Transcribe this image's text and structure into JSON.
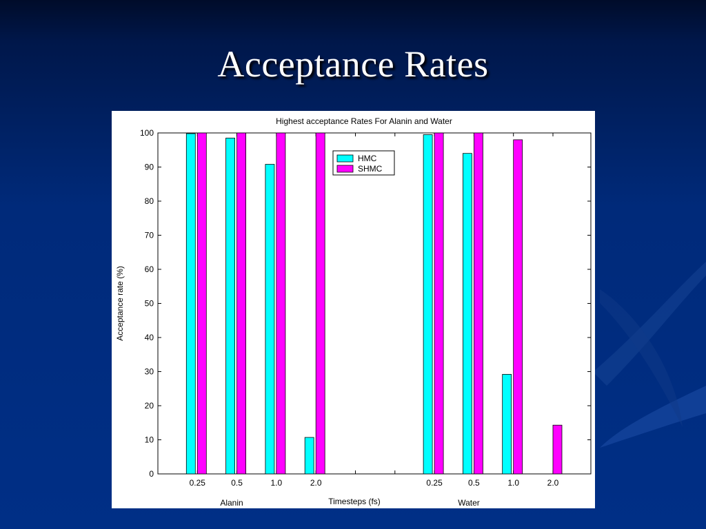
{
  "slide": {
    "title": "Acceptance Rates"
  },
  "colors": {
    "hmc": "#00ffff",
    "shmc": "#ff00ff",
    "background": "#002a7a"
  },
  "chart_data": {
    "type": "bar",
    "title": "Highest acceptance Rates For Alanin and Water",
    "xlabel": "Timesteps (fs)",
    "ylabel": "Acceptance rate (%)",
    "ylim": [
      0,
      100
    ],
    "yticks": [
      0,
      10,
      20,
      30,
      40,
      50,
      60,
      70,
      80,
      90,
      100
    ],
    "categories": [
      "0.25",
      "0.5",
      "1.0",
      "2.0",
      "",
      "",
      "0.25",
      "0.5",
      "1.0",
      "2.0"
    ],
    "group_labels": [
      {
        "label": "Alanin",
        "categories": [
          "0.25",
          "0.5",
          "1.0",
          "2.0"
        ]
      },
      {
        "label": "Water",
        "categories": [
          "0.25",
          "0.5",
          "1.0",
          "2.0"
        ]
      }
    ],
    "series": [
      {
        "name": "HMC",
        "color": "#00ffff",
        "values": [
          99.8,
          98.5,
          90.8,
          10.7,
          null,
          null,
          99.5,
          94.0,
          29.2,
          null
        ]
      },
      {
        "name": "SHMC",
        "color": "#ff00ff",
        "values": [
          100,
          100,
          100,
          100,
          null,
          null,
          100,
          100,
          98.0,
          14.3
        ]
      }
    ],
    "legend": {
      "position": "top-center"
    },
    "grid": false
  }
}
